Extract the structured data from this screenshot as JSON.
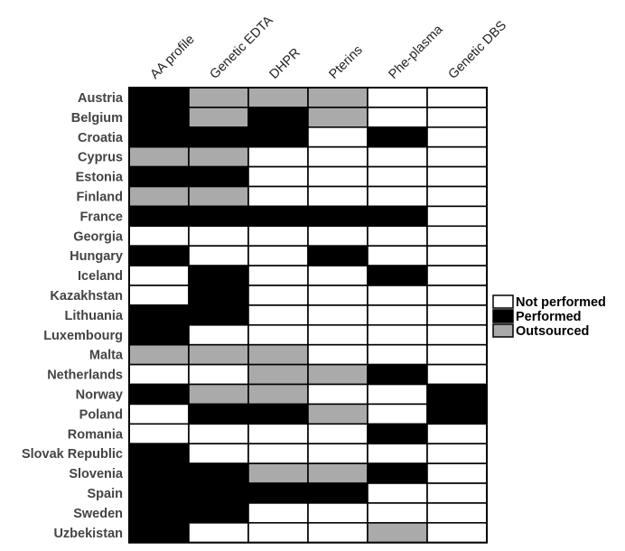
{
  "chart_data": {
    "type": "heatmap",
    "columns": [
      "AA profile",
      "Genetic EDTA",
      "DHPR",
      "Pterins",
      "Phe-plasma",
      "Genetic DBS"
    ],
    "rows": [
      {
        "country": "Austria",
        "values": [
          "Performed",
          "Outsourced",
          "Outsourced",
          "Outsourced",
          "Not performed",
          "Not performed"
        ]
      },
      {
        "country": "Belgium",
        "values": [
          "Performed",
          "Outsourced",
          "Performed",
          "Outsourced",
          "Not performed",
          "Not performed"
        ]
      },
      {
        "country": "Croatia",
        "values": [
          "Performed",
          "Performed",
          "Performed",
          "Not performed",
          "Performed",
          "Not performed"
        ]
      },
      {
        "country": "Cyprus",
        "values": [
          "Outsourced",
          "Outsourced",
          "Not performed",
          "Not performed",
          "Not performed",
          "Not performed"
        ]
      },
      {
        "country": "Estonia",
        "values": [
          "Performed",
          "Performed",
          "Not performed",
          "Not performed",
          "Not performed",
          "Not performed"
        ]
      },
      {
        "country": "Finland",
        "values": [
          "Outsourced",
          "Outsourced",
          "Not performed",
          "Not performed",
          "Not performed",
          "Not performed"
        ]
      },
      {
        "country": "France",
        "values": [
          "Performed",
          "Performed",
          "Performed",
          "Performed",
          "Performed",
          "Not performed"
        ]
      },
      {
        "country": "Georgia",
        "values": [
          "Not performed",
          "Not performed",
          "Not performed",
          "Not performed",
          "Not performed",
          "Not performed"
        ]
      },
      {
        "country": "Hungary",
        "values": [
          "Performed",
          "Not performed",
          "Not performed",
          "Performed",
          "Not performed",
          "Not performed"
        ]
      },
      {
        "country": "Iceland",
        "values": [
          "Not performed",
          "Performed",
          "Not performed",
          "Not performed",
          "Performed",
          "Not performed"
        ]
      },
      {
        "country": "Kazakhstan",
        "values": [
          "Not performed",
          "Performed",
          "Not performed",
          "Not performed",
          "Not performed",
          "Not performed"
        ]
      },
      {
        "country": "Lithuania",
        "values": [
          "Performed",
          "Performed",
          "Not performed",
          "Not performed",
          "Not performed",
          "Not performed"
        ]
      },
      {
        "country": "Luxembourg",
        "values": [
          "Performed",
          "Not performed",
          "Not performed",
          "Not performed",
          "Not performed",
          "Not performed"
        ]
      },
      {
        "country": "Malta",
        "values": [
          "Outsourced",
          "Outsourced",
          "Outsourced",
          "Not performed",
          "Not performed",
          "Not performed"
        ]
      },
      {
        "country": "Netherlands",
        "values": [
          "Not performed",
          "Not performed",
          "Outsourced",
          "Outsourced",
          "Performed",
          "Not performed"
        ]
      },
      {
        "country": "Norway",
        "values": [
          "Performed",
          "Outsourced",
          "Outsourced",
          "Not performed",
          "Not performed",
          "Performed"
        ]
      },
      {
        "country": "Poland",
        "values": [
          "Not performed",
          "Performed",
          "Performed",
          "Outsourced",
          "Not performed",
          "Performed"
        ]
      },
      {
        "country": "Romania",
        "values": [
          "Not performed",
          "Not performed",
          "Not performed",
          "Not performed",
          "Performed",
          "Not performed"
        ]
      },
      {
        "country": "Slovak Republic",
        "values": [
          "Performed",
          "Not performed",
          "Not performed",
          "Not performed",
          "Not performed",
          "Not performed"
        ]
      },
      {
        "country": "Slovenia",
        "values": [
          "Performed",
          "Performed",
          "Outsourced",
          "Outsourced",
          "Performed",
          "Not performed"
        ]
      },
      {
        "country": "Spain",
        "values": [
          "Performed",
          "Performed",
          "Performed",
          "Performed",
          "Not performed",
          "Not performed"
        ]
      },
      {
        "country": "Sweden",
        "values": [
          "Performed",
          "Performed",
          "Not performed",
          "Not performed",
          "Not performed",
          "Not performed"
        ]
      },
      {
        "country": "Uzbekistan",
        "values": [
          "Performed",
          "Not performed",
          "Not performed",
          "Not performed",
          "Outsourced",
          "Not performed"
        ]
      }
    ],
    "legend": {
      "placement": "right",
      "items": [
        {
          "label": "Not performed",
          "color": "#ffffff"
        },
        {
          "label": "Performed",
          "color": "#000000"
        },
        {
          "label": "Outsourced",
          "color": "#aaaaaa"
        }
      ]
    },
    "colors": {
      "Not performed": "#ffffff",
      "Performed": "#000000",
      "Outsourced": "#aaaaaa"
    },
    "title": "",
    "xlabel": "",
    "ylabel": ""
  }
}
